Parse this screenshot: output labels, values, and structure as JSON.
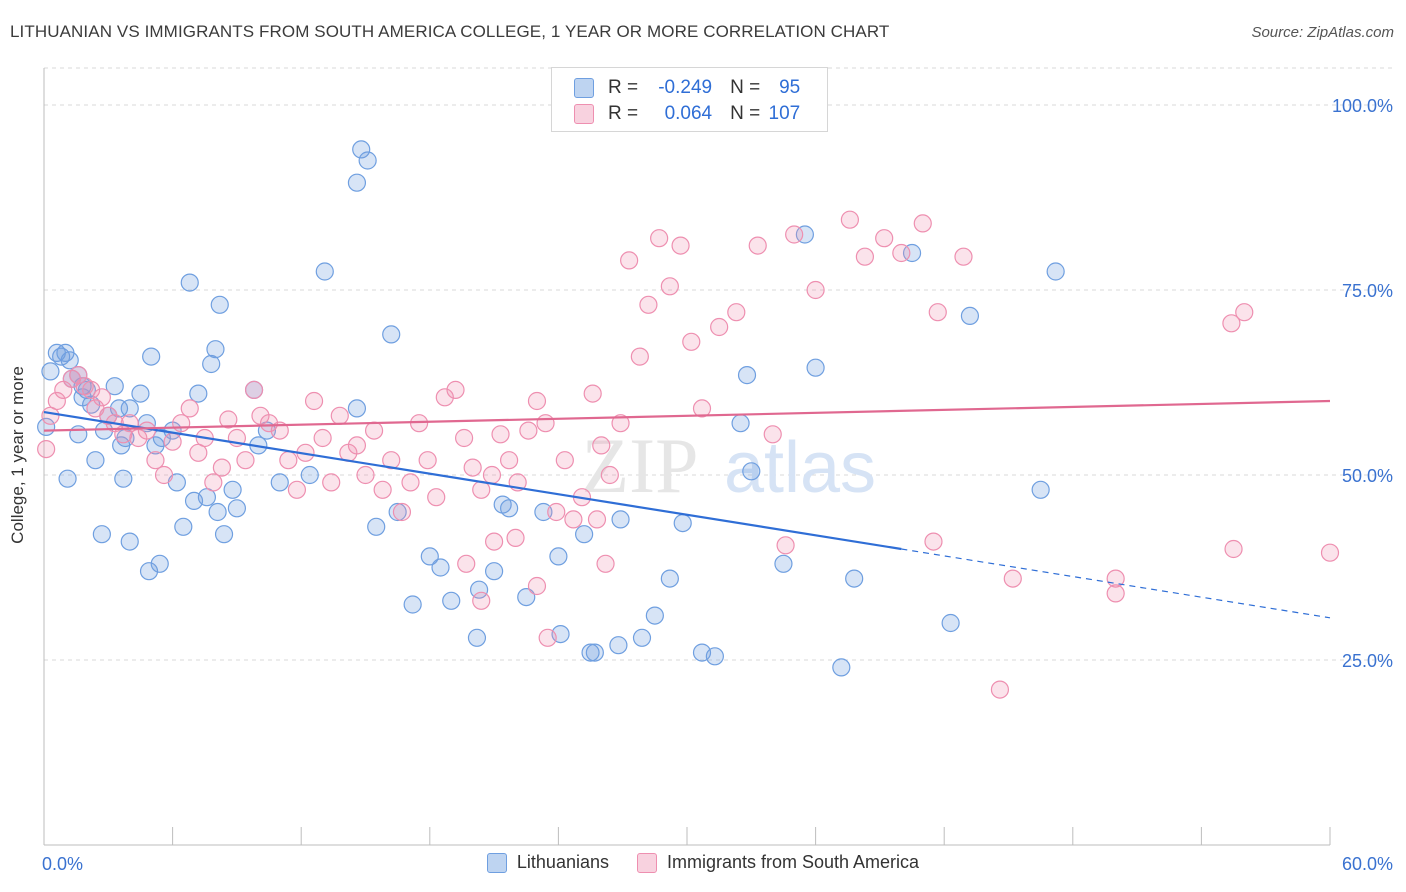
{
  "header": {
    "title": "LITHUANIAN VS IMMIGRANTS FROM SOUTH AMERICA COLLEGE, 1 YEAR OR MORE CORRELATION CHART",
    "source": "Source: ZipAtlas.com"
  },
  "legend": {
    "r_label": "R =",
    "n_label": "N =",
    "series": [
      {
        "name": "Lithuanians",
        "r": "-0.249",
        "n": "95"
      },
      {
        "name": "Immigrants from South America",
        "r": "0.064",
        "n": "107"
      }
    ]
  },
  "colors": {
    "blue": "#6f9fe0",
    "blue_fill": "rgba(111,159,224,0.28)",
    "blue_line": "#2f6ed6",
    "pink": "#ee8fb0",
    "pink_fill": "rgba(238,143,176,0.25)",
    "pink_line": "#e06890",
    "axis_text": "#3a72d0",
    "grid": "#d9d9d9"
  },
  "chart_data": {
    "type": "scatter",
    "title": "LITHUANIAN VS IMMIGRANTS FROM SOUTH AMERICA COLLEGE, 1 YEAR OR MORE CORRELATION CHART",
    "xlabel": "",
    "ylabel": "College, 1 year or more",
    "xlim": [
      0,
      60
    ],
    "ylim": [
      0,
      105
    ],
    "x_tick_labels": [
      "0.0%",
      "60.0%"
    ],
    "y_ticks": [
      25,
      50,
      75,
      100
    ],
    "y_tick_labels": [
      "25.0%",
      "50.0%",
      "75.0%",
      "100.0%"
    ],
    "watermark": "ZIPatlas",
    "series": [
      {
        "name": "Lithuanians",
        "color": "#6f9fe0",
        "trend": {
          "x0": 0,
          "y0": 58.5,
          "x1": 40,
          "y1": 40,
          "dash_to_x": 60,
          "dash_to_y": 30.7
        },
        "points": [
          [
            0.1,
            56.5
          ],
          [
            0.3,
            64
          ],
          [
            0.6,
            66.5
          ],
          [
            0.8,
            66
          ],
          [
            1.0,
            66.5
          ],
          [
            1.2,
            65.5
          ],
          [
            1.3,
            63
          ],
          [
            1.6,
            63.5
          ],
          [
            1.8,
            62
          ],
          [
            2.0,
            61.5
          ],
          [
            2.2,
            59.5
          ],
          [
            1.8,
            60.5
          ],
          [
            2.8,
            56
          ],
          [
            3.0,
            58
          ],
          [
            3.3,
            62
          ],
          [
            3.5,
            59
          ],
          [
            3.8,
            55
          ],
          [
            4.0,
            59
          ],
          [
            4.5,
            61
          ],
          [
            4.8,
            57
          ],
          [
            5.0,
            66
          ],
          [
            5.5,
            55
          ],
          [
            6.0,
            56
          ],
          [
            6.2,
            49
          ],
          [
            5.2,
            54
          ],
          [
            6.8,
            76
          ],
          [
            7.2,
            61
          ],
          [
            7.8,
            65
          ],
          [
            8.0,
            67
          ],
          [
            8.2,
            73
          ],
          [
            3.6,
            54
          ],
          [
            2.4,
            52
          ],
          [
            3.7,
            49.5
          ],
          [
            1.6,
            55.5
          ],
          [
            1.1,
            49.5
          ],
          [
            2.7,
            42
          ],
          [
            4.0,
            41
          ],
          [
            4.9,
            37
          ],
          [
            5.4,
            38
          ],
          [
            6.5,
            43
          ],
          [
            7.0,
            46.5
          ],
          [
            7.6,
            47
          ],
          [
            8.1,
            45
          ],
          [
            8.4,
            42
          ],
          [
            8.8,
            48
          ],
          [
            9.0,
            45.5
          ],
          [
            9.8,
            61.5
          ],
          [
            10.4,
            56
          ],
          [
            10.0,
            54
          ],
          [
            11.0,
            49
          ],
          [
            12.4,
            50
          ],
          [
            14.8,
            94
          ],
          [
            14.6,
            89.5
          ],
          [
            15.1,
            92.5
          ],
          [
            13.1,
            77.5
          ],
          [
            16.2,
            69
          ],
          [
            14.6,
            59
          ],
          [
            15.5,
            43
          ],
          [
            16.5,
            45
          ],
          [
            17.2,
            32.5
          ],
          [
            18.0,
            39
          ],
          [
            18.5,
            37.5
          ],
          [
            19.0,
            33
          ],
          [
            20.2,
            28
          ],
          [
            20.3,
            34.5
          ],
          [
            21.0,
            37
          ],
          [
            21.4,
            46
          ],
          [
            21.7,
            45.5
          ],
          [
            22.5,
            33.5
          ],
          [
            23.3,
            45
          ],
          [
            24.0,
            39
          ],
          [
            24.1,
            28.5
          ],
          [
            25.2,
            42
          ],
          [
            25.5,
            26
          ],
          [
            25.7,
            26
          ],
          [
            26.9,
            44
          ],
          [
            27.9,
            28
          ],
          [
            28.5,
            31
          ],
          [
            29.8,
            43.5
          ],
          [
            30.7,
            26
          ],
          [
            31.3,
            25.5
          ],
          [
            32.5,
            57
          ],
          [
            32.8,
            63.5
          ],
          [
            35.5,
            82.5
          ],
          [
            36.0,
            64.5
          ],
          [
            37.8,
            36
          ],
          [
            40.5,
            80
          ],
          [
            43.2,
            71.5
          ],
          [
            47.2,
            77.5
          ],
          [
            42.3,
            30
          ],
          [
            29.2,
            36
          ],
          [
            26.8,
            27
          ],
          [
            33.0,
            50.5
          ],
          [
            34.5,
            38
          ],
          [
            37.2,
            24
          ],
          [
            46.5,
            48
          ]
        ]
      },
      {
        "name": "Immigrants from South America",
        "color": "#ee8fb0",
        "trend": {
          "x0": 0,
          "y0": 56,
          "x1": 60,
          "y1": 60
        },
        "points": [
          [
            0.1,
            53.5
          ],
          [
            0.3,
            58
          ],
          [
            0.6,
            60
          ],
          [
            0.9,
            61.5
          ],
          [
            1.3,
            63
          ],
          [
            1.6,
            63.5
          ],
          [
            1.9,
            62
          ],
          [
            2.2,
            61.5
          ],
          [
            2.4,
            59
          ],
          [
            2.7,
            60.5
          ],
          [
            3.0,
            58
          ],
          [
            3.3,
            57
          ],
          [
            3.7,
            55.5
          ],
          [
            4.0,
            57
          ],
          [
            4.4,
            55
          ],
          [
            4.8,
            56
          ],
          [
            5.2,
            52
          ],
          [
            5.6,
            50
          ],
          [
            6.0,
            54.5
          ],
          [
            6.4,
            57
          ],
          [
            6.8,
            59
          ],
          [
            7.2,
            53
          ],
          [
            7.5,
            55
          ],
          [
            7.9,
            49
          ],
          [
            8.3,
            51
          ],
          [
            8.6,
            57.5
          ],
          [
            9.0,
            55
          ],
          [
            9.4,
            52
          ],
          [
            9.8,
            61.5
          ],
          [
            10.1,
            58
          ],
          [
            10.5,
            57
          ],
          [
            11.0,
            56
          ],
          [
            11.4,
            52
          ],
          [
            11.8,
            48
          ],
          [
            12.2,
            53
          ],
          [
            12.6,
            60
          ],
          [
            13.0,
            55
          ],
          [
            13.4,
            49
          ],
          [
            13.8,
            58
          ],
          [
            14.2,
            53
          ],
          [
            14.6,
            54
          ],
          [
            15.0,
            50
          ],
          [
            15.4,
            56
          ],
          [
            15.8,
            48
          ],
          [
            16.2,
            52
          ],
          [
            16.7,
            45
          ],
          [
            17.1,
            49
          ],
          [
            17.5,
            57
          ],
          [
            17.9,
            52
          ],
          [
            18.3,
            47
          ],
          [
            18.7,
            60.5
          ],
          [
            19.2,
            61.5
          ],
          [
            19.6,
            55
          ],
          [
            20.0,
            51
          ],
          [
            20.4,
            48
          ],
          [
            20.9,
            50
          ],
          [
            21.3,
            55.5
          ],
          [
            21.7,
            52
          ],
          [
            22.1,
            49
          ],
          [
            22.6,
            56
          ],
          [
            23.0,
            60
          ],
          [
            23.4,
            57
          ],
          [
            23.9,
            45
          ],
          [
            24.3,
            52
          ],
          [
            24.7,
            44
          ],
          [
            25.1,
            47
          ],
          [
            25.6,
            61
          ],
          [
            26.0,
            54
          ],
          [
            26.4,
            50
          ],
          [
            26.9,
            57
          ],
          [
            27.3,
            79
          ],
          [
            27.8,
            66
          ],
          [
            28.2,
            73
          ],
          [
            28.7,
            82
          ],
          [
            29.2,
            75.5
          ],
          [
            29.7,
            81
          ],
          [
            30.2,
            68
          ],
          [
            30.7,
            59
          ],
          [
            31.5,
            70
          ],
          [
            32.3,
            72
          ],
          [
            33.3,
            81
          ],
          [
            35.0,
            82.5
          ],
          [
            36.0,
            75
          ],
          [
            37.6,
            84.5
          ],
          [
            38.3,
            79.5
          ],
          [
            39.2,
            82
          ],
          [
            40.0,
            80
          ],
          [
            41.0,
            84
          ],
          [
            41.7,
            72
          ],
          [
            42.9,
            79.5
          ],
          [
            45.2,
            36
          ],
          [
            50.0,
            36
          ],
          [
            55.5,
            40
          ],
          [
            60.0,
            39.5
          ],
          [
            55.4,
            70.5
          ],
          [
            56.0,
            72
          ],
          [
            50.0,
            34
          ],
          [
            44.6,
            21
          ],
          [
            41.5,
            41
          ],
          [
            34.6,
            40.5
          ],
          [
            34.0,
            55.5
          ],
          [
            26.2,
            38
          ],
          [
            25.8,
            44
          ],
          [
            23.0,
            35
          ],
          [
            23.5,
            28
          ],
          [
            22.0,
            41.5
          ],
          [
            21.0,
            41
          ],
          [
            19.7,
            38
          ],
          [
            20.4,
            33
          ]
        ]
      }
    ]
  }
}
